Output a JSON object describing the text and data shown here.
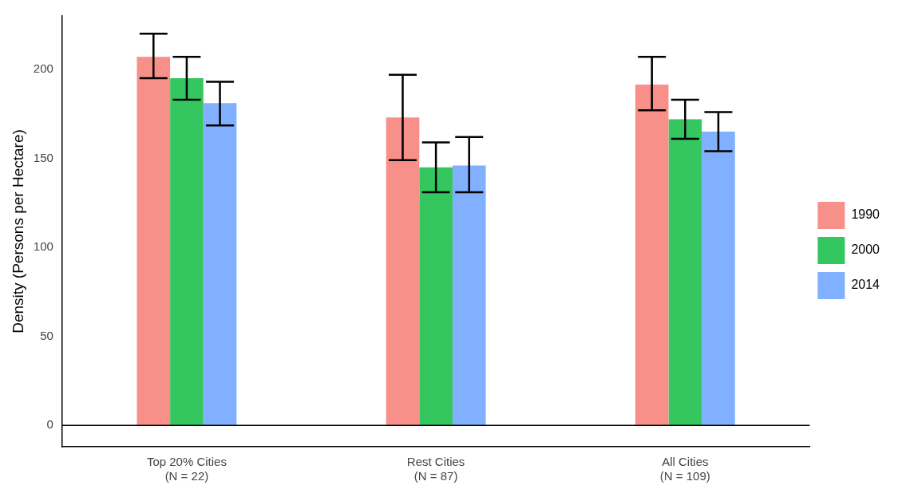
{
  "chart_data": {
    "type": "bar",
    "ylabel": "Density (Persons per Hectare)",
    "categories": [
      "Top 20% Cities\n(N = 22)",
      "Rest Cities\n(N = 87)",
      "All Cities\n(N = 109)"
    ],
    "series": [
      {
        "name": "1990",
        "color": "#f8908a",
        "values": [
          207,
          173,
          191.5
        ],
        "errors": [
          [
            195,
            220
          ],
          [
            149,
            197
          ],
          [
            177,
            207
          ]
        ]
      },
      {
        "name": "2000",
        "color": "#35c75f",
        "values": [
          195,
          145,
          172
        ],
        "errors": [
          [
            183,
            207
          ],
          [
            131,
            159
          ],
          [
            161,
            183
          ]
        ]
      },
      {
        "name": "2014",
        "color": "#80b0ff",
        "values": [
          181,
          146,
          165
        ],
        "errors": [
          [
            168.5,
            193
          ],
          [
            131,
            162
          ],
          [
            154,
            176
          ]
        ]
      }
    ],
    "ylim": [
      -12,
      230
    ],
    "yticks": [
      0,
      50,
      100,
      150,
      200
    ],
    "grid": false,
    "legend": "right",
    "ref_lines": [
      {
        "axis": "y",
        "value": 0,
        "color": "#000000"
      }
    ]
  }
}
